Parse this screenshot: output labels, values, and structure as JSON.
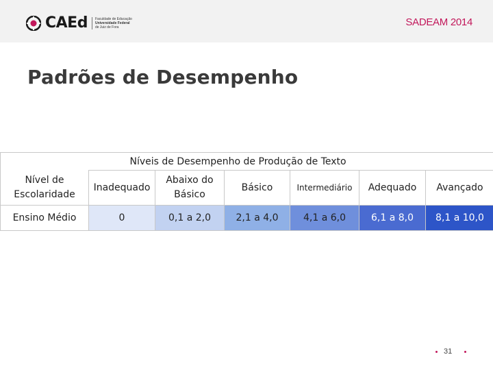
{
  "header": {
    "logo_text": "CAEd",
    "logo_tagline": [
      "Faculdade de Educação",
      "Universidade Federal",
      "de Juiz de Fora"
    ],
    "event_label": "SADEAM 2014"
  },
  "slide": {
    "title": "Padrões de Desempenho"
  },
  "table": {
    "caption": "Níveis de Desempenho de Produção de Texto",
    "level_header": "Nível de Escolaridade",
    "columns": [
      "Inadequado",
      "Abaixo do Básico",
      "Básico",
      "Intermediário",
      "Adequado",
      "Avançado"
    ],
    "rows": [
      {
        "level": "Ensino Médio",
        "values": [
          "0",
          "0,1 a 2,0",
          "2,1 a 4,0",
          "4,1 a 6,0",
          "6,1 a 8,0",
          "8,1 a 10,0"
        ]
      }
    ],
    "level_colors": [
      "#dfe7f8",
      "#c2d2f1",
      "#8fb0e6",
      "#6f8fdc",
      "#4a6bd1",
      "#2d55c8"
    ]
  },
  "footer": {
    "page_number": "31",
    "accent_color": "#c2185b"
  }
}
